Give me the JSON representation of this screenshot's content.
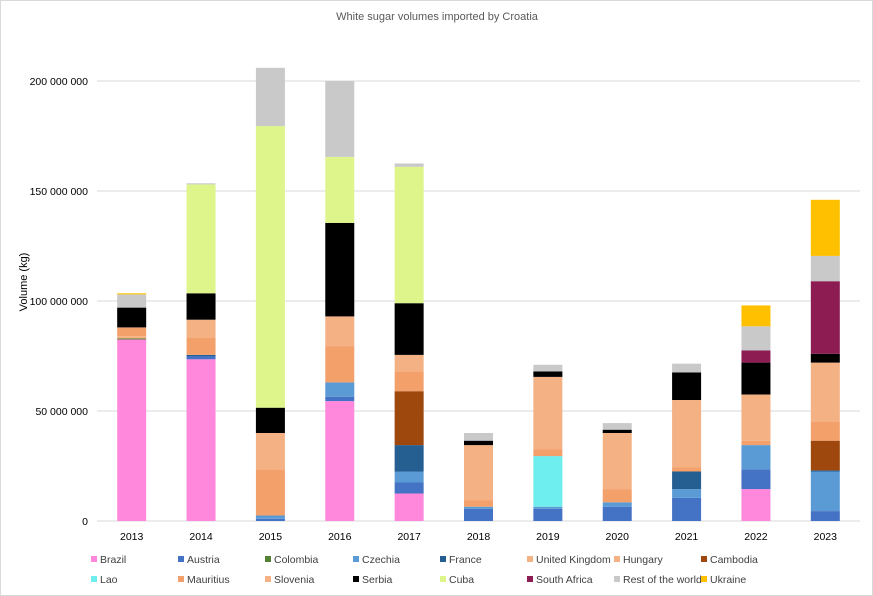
{
  "chart_data": {
    "type": "bar",
    "stacked": true,
    "title": "White sugar volumes imported by Croatia",
    "xlabel": "",
    "ylabel": "Volume (kg)",
    "ylim": [
      0,
      200000000
    ],
    "yticks": [
      0,
      50000000,
      100000000,
      150000000,
      200000000
    ],
    "ytick_labels": [
      "0",
      "50 000 000",
      "100 000 000",
      "150 000 000",
      "200 000 000"
    ],
    "grid": true,
    "legend_position": "bottom",
    "categories": [
      "2013",
      "2014",
      "2015",
      "2016",
      "2017",
      "2018",
      "2019",
      "2020",
      "2021",
      "2022",
      "2023"
    ],
    "series": [
      {
        "name": "Brazil",
        "color": "#ff88dd",
        "values": [
          82500000,
          73500000,
          0,
          54500000,
          12500000,
          0,
          0,
          0,
          0,
          14500000,
          0
        ]
      },
      {
        "name": "Austria",
        "color": "#4472c4",
        "values": [
          0,
          1500000,
          1000000,
          2000000,
          5000000,
          5500000,
          5500000,
          6500000,
          10500000,
          9000000,
          4500000
        ]
      },
      {
        "name": "Colombia",
        "color": "#548235",
        "values": [
          500000,
          0,
          0,
          0,
          0,
          0,
          0,
          0,
          0,
          0,
          0
        ]
      },
      {
        "name": "Czechia",
        "color": "#5b9bd5",
        "values": [
          0,
          0,
          1500000,
          6500000,
          5000000,
          1000000,
          1000000,
          2000000,
          4000000,
          11000000,
          18000000
        ]
      },
      {
        "name": "France",
        "color": "#255e91",
        "values": [
          0,
          500000,
          0,
          0,
          12000000,
          0,
          0,
          0,
          8000000,
          0,
          500000
        ]
      },
      {
        "name": "United Kingdom",
        "color": "#f4b183",
        "values": [
          1000000,
          0,
          0,
          0,
          0,
          0,
          0,
          0,
          0,
          0,
          0
        ]
      },
      {
        "name": "Hungary",
        "color": "#f4b183",
        "values": [
          0,
          0,
          0,
          0,
          0,
          0,
          0,
          0,
          0,
          0,
          0
        ]
      },
      {
        "name": "Cambodia",
        "color": "#9e480e",
        "values": [
          0,
          0,
          0,
          0,
          24500000,
          0,
          0,
          0,
          0,
          0,
          13500000
        ]
      },
      {
        "name": "Lao",
        "color": "#6eeeee",
        "values": [
          0,
          0,
          0,
          0,
          0,
          0,
          23000000,
          0,
          0,
          0,
          0
        ]
      },
      {
        "name": "Mauritius",
        "color": "#f4a06b",
        "values": [
          4000000,
          8000000,
          21000000,
          16500000,
          9000000,
          3000000,
          3000000,
          6000000,
          2000000,
          2000000,
          8500000
        ]
      },
      {
        "name": "Slovenia",
        "color": "#f4b183",
        "values": [
          0,
          8000000,
          16500000,
          13500000,
          7500000,
          25000000,
          33000000,
          25500000,
          30500000,
          21000000,
          27000000
        ]
      },
      {
        "name": "Serbia",
        "color": "#000000",
        "values": [
          9000000,
          12000000,
          11500000,
          42500000,
          23500000,
          2000000,
          2500000,
          1500000,
          12500000,
          14500000,
          4000000
        ]
      },
      {
        "name": "Cuba",
        "color": "#ddf58a",
        "values": [
          0,
          49500000,
          128000000,
          30000000,
          62000000,
          0,
          0,
          0,
          0,
          0,
          0
        ]
      },
      {
        "name": "South Africa",
        "color": "#8c1c52",
        "values": [
          0,
          0,
          0,
          0,
          0,
          0,
          0,
          0,
          0,
          5500000,
          33000000
        ]
      },
      {
        "name": "Rest of the world",
        "color": "#c9c9c9",
        "values": [
          6000000,
          500000,
          26500000,
          34500000,
          1500000,
          3500000,
          3000000,
          3000000,
          4000000,
          11000000,
          11500000
        ]
      },
      {
        "name": "Ukraine",
        "color": "#ffc000",
        "values": [
          500000,
          0,
          0,
          0,
          0,
          0,
          0,
          0,
          0,
          9500000,
          25500000
        ]
      }
    ]
  }
}
